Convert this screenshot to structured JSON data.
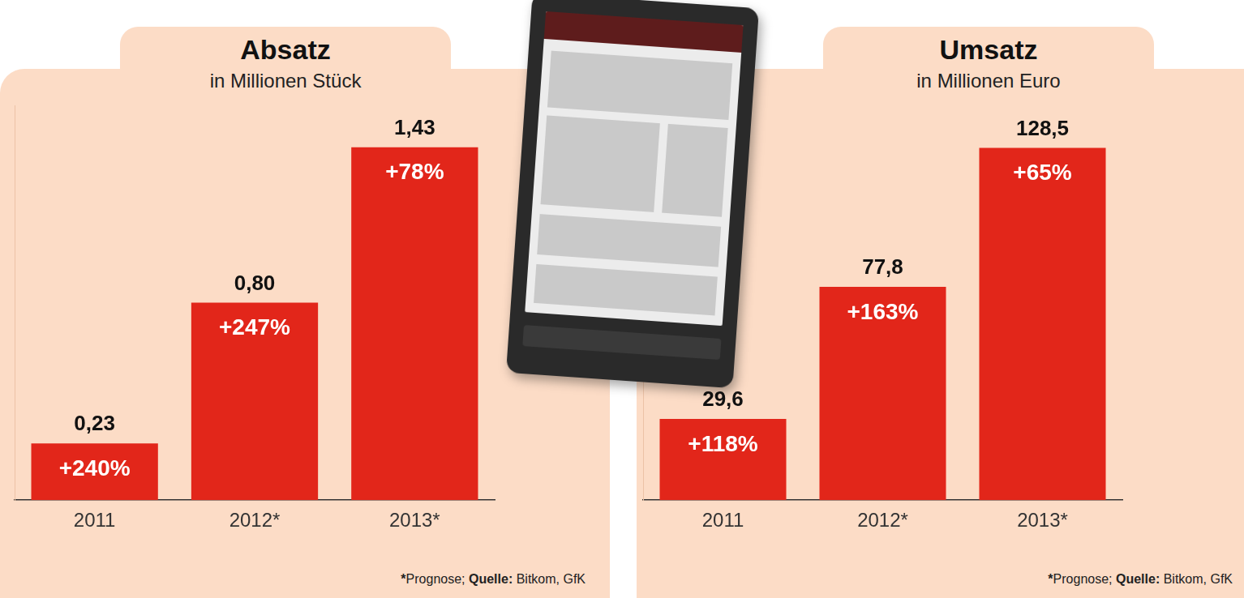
{
  "chart_data": [
    {
      "type": "bar",
      "title": "Absatz",
      "subtitle": "in Millionen Stück",
      "categories": [
        "2011",
        "2012*",
        "2013*"
      ],
      "values": [
        0.23,
        0.8,
        1.43
      ],
      "value_labels": [
        "0,23",
        "0,80",
        "1,43"
      ],
      "annotations": [
        "+240%",
        "+247%",
        "+78%"
      ],
      "color": "#e2261a",
      "ylim": [
        0,
        1.6
      ],
      "yticks": [],
      "grid": false,
      "data_labels": true,
      "tick_labels": "x",
      "footnote": [
        {
          "text": "*",
          "bold": true
        },
        {
          "text": "Prognose; ",
          "bold": false
        },
        {
          "text": "Quelle:",
          "bold": true
        },
        {
          "text": " Bitkom, GfK",
          "bold": false
        }
      ]
    },
    {
      "type": "bar",
      "title": "Umsatz",
      "subtitle": "in Millionen Euro",
      "categories": [
        "2011",
        "2012*",
        "2013*"
      ],
      "values": [
        29.6,
        77.8,
        128.5
      ],
      "value_labels": [
        "29,6",
        "77,8",
        "128,5"
      ],
      "annotations": [
        "+118%",
        "+163%",
        "+65%"
      ],
      "color": "#e2261a",
      "ylim": [
        0,
        144
      ],
      "yticks": [],
      "grid": false,
      "data_labels": true,
      "tick_labels": "x",
      "footnote": [
        {
          "text": "*",
          "bold": true
        },
        {
          "text": "Prognose; ",
          "bold": false
        },
        {
          "text": "Quelle:",
          "bold": true
        },
        {
          "text": " Bitkom, GfK",
          "bold": false
        }
      ]
    }
  ]
}
